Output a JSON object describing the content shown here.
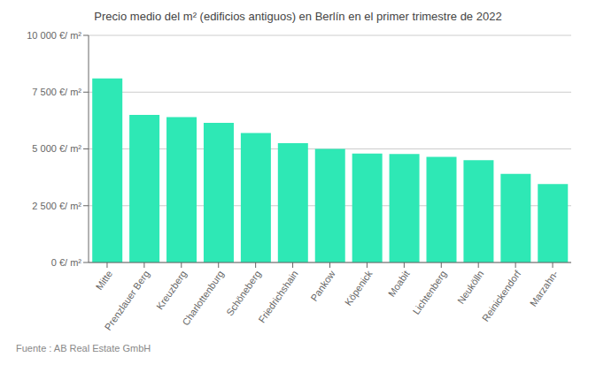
{
  "chart_data": {
    "type": "bar",
    "title": "Precio medio del m² (edificios antiguos) en Berlín en el primer trimestre de 2022",
    "categories": [
      "Mitte",
      "Prenzlauer Berg",
      "Kreuzberg",
      "Charlottenburg",
      "Schöneberg",
      "Friedrichshain",
      "Pankow",
      "Köpenick",
      "Moabit",
      "Lichtenberg",
      "Neukölln",
      "Reinickendorf",
      "Marzahn-"
    ],
    "values": [
      8100,
      6500,
      6400,
      6150,
      5700,
      5250,
      5000,
      4800,
      4780,
      4650,
      4500,
      3900,
      3450
    ],
    "color": "#2EE8B5",
    "ylim": [
      0,
      10000
    ],
    "yticks": [
      {
        "value": 0,
        "label": "0 €/ m²"
      },
      {
        "value": 2500,
        "label": "2 500 €/ m²"
      },
      {
        "value": 5000,
        "label": "5 000 €/ m²"
      },
      {
        "value": 7500,
        "label": "7 500 €/ m²"
      },
      {
        "value": 10000,
        "label": "10 000 €/ m²"
      }
    ],
    "grid": true,
    "annotations": [
      "Fuente : AB Real Estate GmbH"
    ]
  }
}
